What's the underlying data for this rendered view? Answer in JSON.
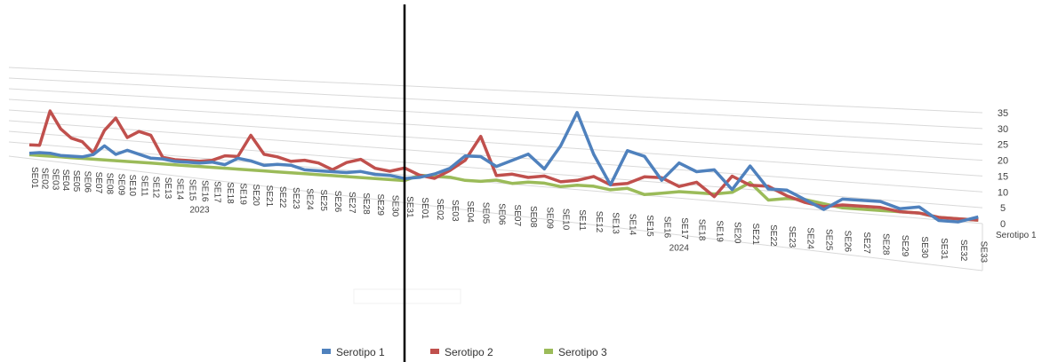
{
  "chart_data": {
    "type": "line",
    "groups": [
      {
        "name": "2023",
        "categories": [
          "SE01",
          "SE02",
          "SE03",
          "SE04",
          "SE05",
          "SE06",
          "SE07",
          "SE08",
          "SE09",
          "SE10",
          "SE11",
          "SE12",
          "SE13",
          "SE14",
          "SE15",
          "SE16",
          "SE17",
          "SE18",
          "SE19",
          "SE20",
          "SE21",
          "SE22",
          "SE23",
          "SE24",
          "SE25",
          "SE26",
          "SE27",
          "SE28",
          "SE29",
          "SE30",
          "SE31"
        ]
      },
      {
        "name": "2024",
        "categories": [
          "SE01",
          "SE02",
          "SE03",
          "SE04",
          "SE05",
          "SE06",
          "SE07",
          "SE08",
          "SE09",
          "SE10",
          "SE11",
          "SE12",
          "SE13",
          "SE14",
          "SE15",
          "SE16",
          "SE17",
          "SE18",
          "SE19",
          "SE20",
          "SE21",
          "SE22",
          "SE23",
          "SE24",
          "SE25",
          "SE26",
          "SE27",
          "SE28",
          "SE29",
          "SE30",
          "SE31",
          "SE32",
          "SE33"
        ]
      }
    ],
    "series": [
      {
        "name": "Serotipo 1",
        "color": "#4f81bd",
        "values": [
          2,
          3,
          3,
          2,
          2,
          2,
          4,
          10,
          5,
          8,
          6,
          4,
          4,
          3,
          3,
          3,
          4,
          3,
          7,
          6,
          4,
          5,
          5,
          3,
          3,
          3,
          3,
          4,
          3,
          3,
          2,
          3,
          5,
          8,
          14,
          14,
          10,
          13,
          16,
          10,
          20,
          34,
          17,
          5,
          19,
          17,
          8,
          15,
          12,
          13,
          6,
          15,
          7,
          7,
          4,
          1,
          5,
          5,
          5,
          3,
          4,
          0,
          0,
          2
        ]
      },
      {
        "name": "Serotipo 2",
        "color": "#c0504d",
        "values": [
          8,
          8,
          32,
          20,
          14,
          12,
          5,
          20,
          28,
          16,
          20,
          18,
          5,
          4,
          4,
          4,
          5,
          8,
          8,
          20,
          10,
          9,
          7,
          8,
          7,
          4,
          8,
          10,
          6,
          5,
          7,
          4,
          3,
          7,
          12,
          23,
          6,
          7,
          6,
          7,
          5,
          6,
          8,
          5,
          6,
          9,
          9,
          6,
          8,
          3,
          11,
          8,
          8,
          5,
          3,
          2,
          3,
          3,
          3,
          2,
          2,
          1,
          1,
          1
        ]
      },
      {
        "name": "Serotipo 3",
        "color": "#9bbb59",
        "values": [
          1,
          1,
          1,
          1,
          1,
          1,
          1,
          1,
          1,
          1,
          1,
          1,
          1,
          1,
          1,
          1,
          1,
          1,
          1,
          1,
          1,
          1,
          1,
          1,
          1,
          1,
          1,
          1,
          1,
          1,
          1,
          4,
          4,
          4,
          3,
          3,
          4,
          3,
          4,
          4,
          3,
          4,
          4,
          3,
          4,
          2,
          3,
          4,
          4,
          4,
          5,
          9,
          3,
          4,
          4,
          3,
          2,
          2,
          2,
          2,
          2,
          1,
          1,
          1
        ]
      }
    ],
    "depth_label": "Serotipo 1",
    "ylim": [
      0,
      35
    ],
    "yticks": [
      0,
      5,
      10,
      15,
      20,
      25,
      30,
      35
    ],
    "grid": true
  }
}
